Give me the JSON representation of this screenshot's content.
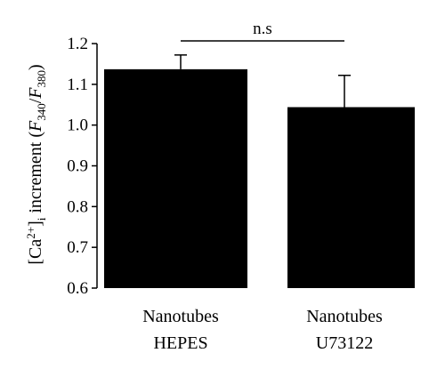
{
  "chart_data": {
    "type": "bar",
    "categories": [
      [
        "Nanotubes",
        "HEPES"
      ],
      [
        "Nanotubes",
        "U73122"
      ]
    ],
    "values": [
      1.137,
      1.044
    ],
    "errors": [
      0.035,
      0.078
    ],
    "colors": {
      "bar": "#000000",
      "axis": "#000000"
    },
    "ylim": [
      0.6,
      1.2
    ],
    "yticks": [
      "0.6",
      "0.7",
      "0.8",
      "0.9",
      "1.0",
      "1.1",
      "1.2"
    ],
    "ylabel": {
      "open_bracket": "[Ca",
      "sup": "2+",
      "close_bracket": "]",
      "sub_i": "i",
      "text": " increment (",
      "f1": "F",
      "f1_sub": "340",
      "slash": "/",
      "f2": "F",
      "f2_sub": "380",
      "end": ")"
    },
    "annotation": "n.s",
    "grid": false
  }
}
